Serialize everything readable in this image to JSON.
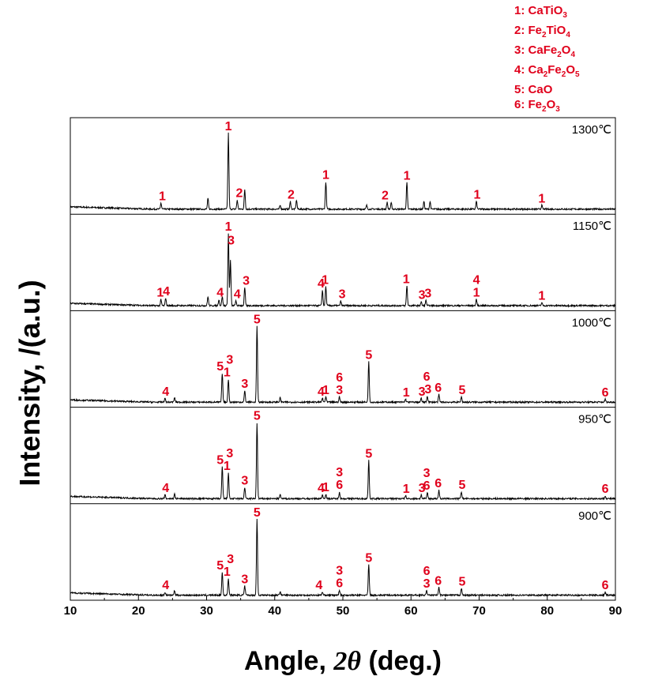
{
  "legend": [
    {
      "num": "1: ",
      "parts": [
        [
          "t",
          "CaTiO"
        ],
        [
          "s",
          "3"
        ]
      ]
    },
    {
      "num": "2: ",
      "parts": [
        [
          "t",
          "Fe"
        ],
        [
          "s",
          "2"
        ],
        [
          "t",
          "TiO"
        ],
        [
          "s",
          "4"
        ]
      ]
    },
    {
      "num": "3: ",
      "parts": [
        [
          "t",
          "CaFe"
        ],
        [
          "s",
          "2"
        ],
        [
          "t",
          "O"
        ],
        [
          "s",
          "4"
        ]
      ]
    },
    {
      "num": "4: ",
      "parts": [
        [
          "t",
          "Ca"
        ],
        [
          "s",
          "2"
        ],
        [
          "t",
          "Fe"
        ],
        [
          "s",
          "2"
        ],
        [
          "t",
          "O"
        ],
        [
          "s",
          "5"
        ]
      ]
    },
    {
      "num": "5: ",
      "parts": [
        [
          "t",
          "CaO"
        ]
      ]
    },
    {
      "num": "6: ",
      "parts": [
        [
          "t",
          "Fe"
        ],
        [
          "s",
          "2"
        ],
        [
          "t",
          "O"
        ],
        [
          "s",
          "3"
        ]
      ]
    }
  ],
  "axes": {
    "ylabel": "Intensity, /(a.u.)",
    "xlabel_prefix": "Angle, ",
    "xlabel_symbol": "2θ",
    "xlabel_suffix": " (deg.)"
  },
  "colors": {
    "trace": "#000000",
    "marker": "#e0001b"
  },
  "chart_data": {
    "type": "line",
    "xlim": [
      10,
      90
    ],
    "xticks": [
      10,
      20,
      30,
      40,
      50,
      60,
      70,
      80,
      90
    ],
    "xlabel": "Angle, 2θ (deg.)",
    "ylabel": "Intensity, /(a.u.)",
    "series": [
      {
        "name": "1300℃",
        "peaks": [
          [
            23.3,
            0.08
          ],
          [
            30.2,
            0.14
          ],
          [
            33.2,
            1.0
          ],
          [
            34.5,
            0.12
          ],
          [
            35.6,
            0.26
          ],
          [
            40.8,
            0.05
          ],
          [
            42.3,
            0.1
          ],
          [
            43.2,
            0.12
          ],
          [
            47.5,
            0.36
          ],
          [
            53.5,
            0.05
          ],
          [
            56.5,
            0.09
          ],
          [
            57.1,
            0.08
          ],
          [
            59.4,
            0.35
          ],
          [
            61.9,
            0.1
          ],
          [
            62.8,
            0.1
          ],
          [
            69.6,
            0.1
          ],
          [
            79.2,
            0.05
          ]
        ],
        "markers": [
          [
            23.5,
            "1",
            0
          ],
          [
            33.2,
            "1",
            0
          ],
          [
            34.8,
            "2",
            0
          ],
          [
            42.4,
            "2",
            0
          ],
          [
            47.5,
            "1",
            0
          ],
          [
            56.2,
            "2",
            0
          ],
          [
            59.4,
            "1",
            0
          ],
          [
            69.7,
            "1",
            0
          ],
          [
            79.2,
            "1",
            0
          ]
        ]
      },
      {
        "name": "1150℃",
        "peaks": [
          [
            23.3,
            0.08
          ],
          [
            24.0,
            0.1
          ],
          [
            30.2,
            0.12
          ],
          [
            31.8,
            0.08
          ],
          [
            32.3,
            0.12
          ],
          [
            33.2,
            0.95
          ],
          [
            33.5,
            0.6
          ],
          [
            34.3,
            0.06
          ],
          [
            35.6,
            0.24
          ],
          [
            47.0,
            0.2
          ],
          [
            47.5,
            0.25
          ],
          [
            49.7,
            0.06
          ],
          [
            59.4,
            0.26
          ],
          [
            61.5,
            0.05
          ],
          [
            62.2,
            0.07
          ],
          [
            69.6,
            0.08
          ],
          [
            79.2,
            0.04
          ]
        ],
        "markers": [
          [
            23.2,
            "1",
            0
          ],
          [
            24.1,
            "4",
            0
          ],
          [
            32.0,
            "4",
            0
          ],
          [
            33.2,
            "1",
            0
          ],
          [
            33.6,
            "3",
            1
          ],
          [
            34.5,
            "4",
            0
          ],
          [
            35.8,
            "3",
            0
          ],
          [
            46.8,
            "4",
            0
          ],
          [
            47.4,
            "1",
            0
          ],
          [
            49.9,
            "3",
            0
          ],
          [
            59.3,
            "1",
            0
          ],
          [
            61.6,
            "3",
            0
          ],
          [
            62.5,
            "3",
            0
          ],
          [
            69.6,
            "1",
            0
          ],
          [
            69.6,
            "4",
            1
          ],
          [
            79.2,
            "1",
            0
          ]
        ]
      },
      {
        "name": "1000℃",
        "peaks": [
          [
            23.9,
            0.05
          ],
          [
            25.3,
            0.06
          ],
          [
            32.3,
            0.38
          ],
          [
            33.2,
            0.3
          ],
          [
            35.6,
            0.15
          ],
          [
            37.4,
            1.0
          ],
          [
            40.8,
            0.06
          ],
          [
            47.0,
            0.05
          ],
          [
            47.5,
            0.07
          ],
          [
            49.5,
            0.07
          ],
          [
            53.8,
            0.53
          ],
          [
            59.2,
            0.04
          ],
          [
            61.5,
            0.05
          ],
          [
            62.4,
            0.08
          ],
          [
            64.1,
            0.1
          ],
          [
            67.4,
            0.07
          ],
          [
            88.5,
            0.04
          ]
        ],
        "markers": [
          [
            24.0,
            "4",
            0
          ],
          [
            32.0,
            "5",
            0
          ],
          [
            33.0,
            "1",
            0
          ],
          [
            33.4,
            "3",
            1
          ],
          [
            35.6,
            "3",
            0
          ],
          [
            37.4,
            "5",
            0
          ],
          [
            46.8,
            "4",
            0
          ],
          [
            47.5,
            "1",
            0
          ],
          [
            49.5,
            "3",
            0
          ],
          [
            49.5,
            "6",
            1
          ],
          [
            53.8,
            "5",
            0
          ],
          [
            59.3,
            "1",
            0
          ],
          [
            61.6,
            "3",
            0
          ],
          [
            62.5,
            "3",
            0
          ],
          [
            62.3,
            "6",
            1
          ],
          [
            64.0,
            "6",
            0
          ],
          [
            67.5,
            "5",
            0
          ],
          [
            88.5,
            "6",
            0
          ]
        ]
      },
      {
        "name": "950℃",
        "peaks": [
          [
            23.9,
            0.05
          ],
          [
            25.3,
            0.06
          ],
          [
            32.3,
            0.42
          ],
          [
            33.2,
            0.34
          ],
          [
            35.6,
            0.15
          ],
          [
            37.4,
            1.0
          ],
          [
            40.8,
            0.05
          ],
          [
            47.0,
            0.05
          ],
          [
            47.5,
            0.06
          ],
          [
            49.5,
            0.09
          ],
          [
            53.8,
            0.5
          ],
          [
            59.2,
            0.04
          ],
          [
            61.5,
            0.05
          ],
          [
            62.4,
            0.08
          ],
          [
            64.1,
            0.11
          ],
          [
            67.4,
            0.09
          ],
          [
            88.5,
            0.04
          ]
        ],
        "markers": [
          [
            24.0,
            "4",
            0
          ],
          [
            32.0,
            "5",
            0
          ],
          [
            33.0,
            "1",
            0
          ],
          [
            33.4,
            "3",
            1
          ],
          [
            35.6,
            "3",
            0
          ],
          [
            37.4,
            "5",
            0
          ],
          [
            46.8,
            "4",
            0
          ],
          [
            47.5,
            "1",
            0
          ],
          [
            49.5,
            "6",
            0
          ],
          [
            49.5,
            "3",
            1
          ],
          [
            53.8,
            "5",
            0
          ],
          [
            59.3,
            "1",
            0
          ],
          [
            61.6,
            "3",
            0
          ],
          [
            62.3,
            "6",
            0
          ],
          [
            62.3,
            "3",
            1
          ],
          [
            64.0,
            "6",
            0
          ],
          [
            67.5,
            "5",
            0
          ],
          [
            88.5,
            "6",
            0
          ]
        ]
      },
      {
        "name": "900℃",
        "peaks": [
          [
            23.9,
            0.04
          ],
          [
            25.3,
            0.06
          ],
          [
            32.3,
            0.3
          ],
          [
            33.2,
            0.22
          ],
          [
            35.6,
            0.12
          ],
          [
            37.4,
            1.0
          ],
          [
            40.8,
            0.05
          ],
          [
            47.0,
            0.04
          ],
          [
            49.5,
            0.07
          ],
          [
            53.8,
            0.4
          ],
          [
            62.3,
            0.06
          ],
          [
            64.1,
            0.1
          ],
          [
            67.4,
            0.09
          ],
          [
            88.5,
            0.04
          ]
        ],
        "markers": [
          [
            24.0,
            "4",
            0
          ],
          [
            32.0,
            "5",
            0
          ],
          [
            33.0,
            "1",
            0
          ],
          [
            33.5,
            "3",
            1
          ],
          [
            35.6,
            "3",
            0
          ],
          [
            37.4,
            "5",
            0
          ],
          [
            46.5,
            "4",
            0
          ],
          [
            49.5,
            "6",
            0
          ],
          [
            49.5,
            "3",
            1
          ],
          [
            53.8,
            "5",
            0
          ],
          [
            62.3,
            "3",
            0
          ],
          [
            62.3,
            "6",
            1
          ],
          [
            64.0,
            "6",
            0
          ],
          [
            67.5,
            "5",
            0
          ],
          [
            88.5,
            "6",
            0
          ]
        ]
      }
    ]
  }
}
